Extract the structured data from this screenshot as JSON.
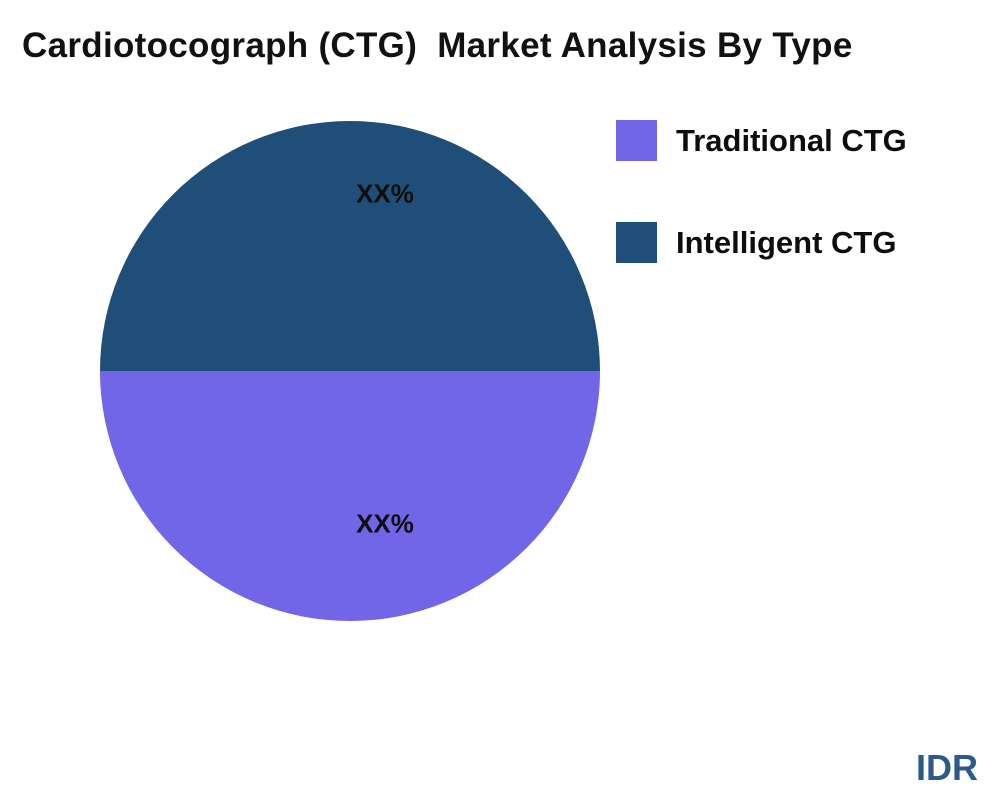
{
  "title": "Cardiotocograph (CTG)  Market Analysis By Type",
  "watermark": "IDR",
  "colors": {
    "traditional_ctg": "#7165E8",
    "intelligent_ctg": "#1F4E79",
    "watermark_blue": "#2d5a8c",
    "background": "#ffffff",
    "text": "#111111"
  },
  "legend": {
    "position": "right",
    "items": [
      {
        "label": "Traditional CTG",
        "color": "#7165E8"
      },
      {
        "label": "Intelligent CTG",
        "color": "#1F4E79"
      }
    ]
  },
  "chart_data": {
    "type": "pie",
    "title": "Cardiotocograph (CTG)  Market Analysis By Type",
    "slices": [
      {
        "label": "Traditional CTG",
        "value": 50,
        "display_value": "XX%",
        "color": "#7165E8",
        "position": "bottom-half"
      },
      {
        "label": "Intelligent CTG",
        "value": 50,
        "display_value": "XX%",
        "color": "#1F4E79",
        "position": "top-half"
      }
    ],
    "start_angle_deg": 90,
    "direction": "clockwise",
    "legend_position": "right",
    "data_labels": "inside",
    "values_masked": true
  }
}
